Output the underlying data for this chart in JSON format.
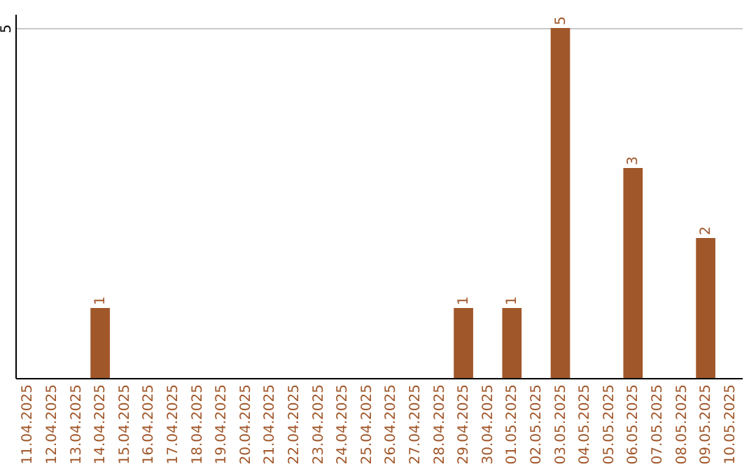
{
  "chart_data": {
    "type": "bar",
    "categories": [
      "11.04.2025",
      "12.04.2025",
      "13.04.2025",
      "14.04.2025",
      "15.04.2025",
      "16.04.2025",
      "17.04.2025",
      "18.04.2025",
      "19.04.2025",
      "20.04.2025",
      "21.04.2025",
      "22.04.2025",
      "23.04.2025",
      "24.04.2025",
      "25.04.2025",
      "26.04.2025",
      "27.04.2025",
      "28.04.2025",
      "29.04.2025",
      "30.04.2025",
      "01.05.2025",
      "02.05.2025",
      "03.05.2025",
      "04.05.2025",
      "05.05.2025",
      "06.05.2025",
      "07.05.2025",
      "08.05.2025",
      "09.05.2025",
      "10.05.2025"
    ],
    "values": [
      null,
      null,
      null,
      1,
      null,
      null,
      null,
      null,
      null,
      null,
      null,
      null,
      null,
      null,
      null,
      null,
      null,
      null,
      1,
      null,
      1,
      null,
      5,
      null,
      null,
      3,
      null,
      null,
      2,
      null
    ],
    "color": "#a0572a",
    "ylim": [
      0,
      5.2
    ],
    "yticks": [
      5
    ],
    "grid": "y",
    "data_labels": true
  }
}
